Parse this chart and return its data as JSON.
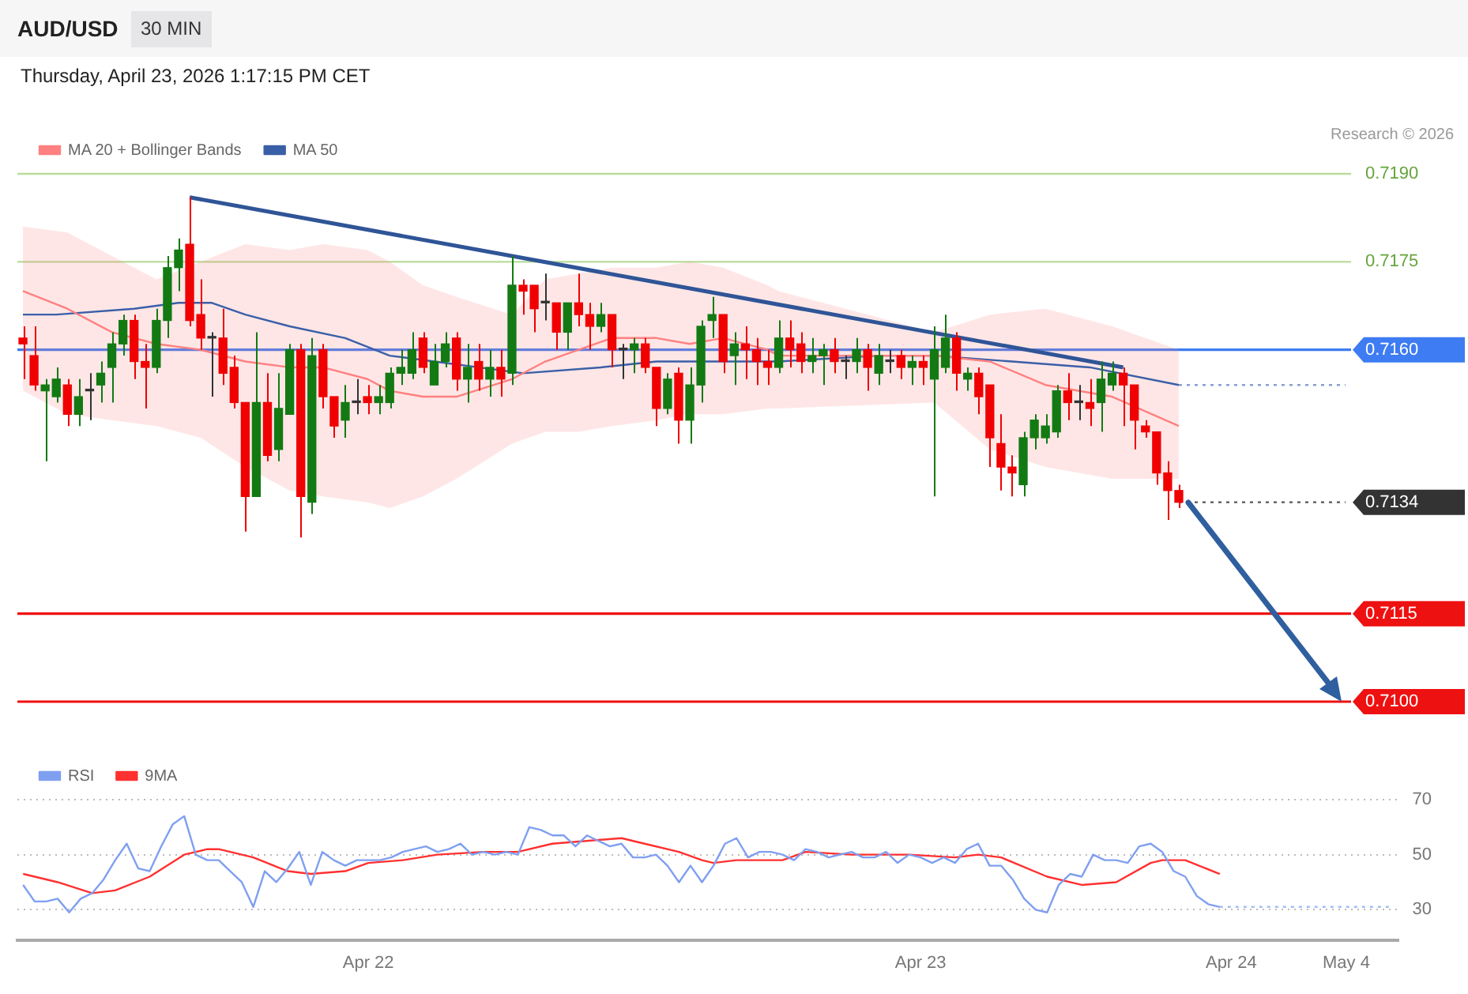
{
  "chart_data": [
    {
      "type": "candlestick",
      "title": "AUD/USD",
      "subtitle": "Thursday, April 23, 2026 1:17:15 PM CET",
      "annotations": [
        "30 MIN",
        "Research © 2026"
      ],
      "categories": [
        null,
        null,
        null,
        null,
        null,
        null,
        null,
        null,
        null,
        null,
        null,
        null,
        null,
        null,
        null,
        null,
        null,
        null,
        null,
        null,
        null,
        null,
        null,
        null,
        null,
        null,
        null,
        null,
        null,
        null,
        null,
        null,
        null,
        null,
        null,
        null,
        null,
        null,
        null,
        null,
        null,
        null,
        null,
        null,
        null,
        null,
        null,
        null,
        null,
        null,
        null,
        null,
        null,
        null,
        null,
        null,
        null,
        null,
        null,
        null,
        null,
        null,
        null,
        null,
        null,
        null,
        null,
        null,
        null,
        null,
        null,
        null,
        null,
        null,
        null,
        null,
        null,
        null,
        null,
        null,
        null,
        null,
        null,
        null,
        null,
        null,
        null,
        null,
        null,
        null,
        null,
        null,
        null,
        null,
        null,
        null,
        null,
        null,
        null,
        null,
        null,
        null,
        null,
        null,
        null,
        null,
        null,
        null,
        null,
        null,
        null,
        null,
        null,
        null,
        null,
        null,
        null,
        null,
        null,
        null
      ],
      "ohlc": [
        [
          0.7162,
          0.7164,
          0.7155,
          0.7161
        ],
        [
          0.7159,
          0.7164,
          0.7153,
          0.7154
        ],
        [
          0.7153,
          0.7155,
          0.7141,
          0.7154
        ],
        [
          0.7152,
          0.7157,
          0.7151,
          0.7155
        ],
        [
          0.7154,
          0.7155,
          0.7147,
          0.7149
        ],
        [
          0.7149,
          0.7155,
          0.7147,
          0.7152
        ],
        [
          0.7153,
          0.7156,
          0.7148,
          0.7153
        ],
        [
          0.7154,
          0.7158,
          0.7151,
          0.7156
        ],
        [
          0.7157,
          0.7163,
          0.7151,
          0.7161
        ],
        [
          0.7161,
          0.7166,
          0.7159,
          0.7165
        ],
        [
          0.7165,
          0.7166,
          0.7155,
          0.7158
        ],
        [
          0.7158,
          0.7161,
          0.715,
          0.7157
        ],
        [
          0.7157,
          0.7167,
          0.7156,
          0.7165
        ],
        [
          0.7165,
          0.7176,
          0.7162,
          0.7174
        ],
        [
          0.7174,
          0.7179,
          0.717,
          0.7177
        ],
        [
          0.7178,
          0.7186,
          0.7164,
          0.7165
        ],
        [
          0.7166,
          0.7172,
          0.716,
          0.7162
        ],
        [
          0.7162,
          0.7163,
          0.7152,
          0.7162
        ],
        [
          0.7162,
          0.7167,
          0.7154,
          0.7156
        ],
        [
          0.7157,
          0.7159,
          0.715,
          0.7151
        ],
        [
          0.7151,
          0.7151,
          0.7129,
          0.7135
        ],
        [
          0.7135,
          0.7163,
          0.7135,
          0.7151
        ],
        [
          0.7151,
          0.7156,
          0.7141,
          0.7142
        ],
        [
          0.7143,
          0.7156,
          0.7141,
          0.715
        ],
        [
          0.7149,
          0.7161,
          0.7149,
          0.716
        ],
        [
          0.716,
          0.7161,
          0.7128,
          0.7135
        ],
        [
          0.7134,
          0.7162,
          0.7132,
          0.7159
        ],
        [
          0.716,
          0.7161,
          0.715,
          0.7152
        ],
        [
          0.7152,
          0.7152,
          0.7145,
          0.7147
        ],
        [
          0.7148,
          0.7154,
          0.7145,
          0.7151
        ],
        [
          0.7151,
          0.7155,
          0.7149,
          0.7151
        ],
        [
          0.7152,
          0.7154,
          0.7149,
          0.7151
        ],
        [
          0.7151,
          0.7154,
          0.7149,
          0.7152
        ],
        [
          0.7151,
          0.7157,
          0.715,
          0.7156
        ],
        [
          0.7156,
          0.716,
          0.7154,
          0.7157
        ],
        [
          0.7156,
          0.7163,
          0.7155,
          0.716
        ],
        [
          0.7162,
          0.7163,
          0.7156,
          0.7157
        ],
        [
          0.7154,
          0.7161,
          0.7154,
          0.7158
        ],
        [
          0.7158,
          0.7163,
          0.7157,
          0.7161
        ],
        [
          0.7162,
          0.7163,
          0.7153,
          0.7155
        ],
        [
          0.7155,
          0.7161,
          0.7151,
          0.7157
        ],
        [
          0.7158,
          0.7161,
          0.7153,
          0.7155
        ],
        [
          0.7155,
          0.716,
          0.7152,
          0.7157
        ],
        [
          0.7157,
          0.716,
          0.7152,
          0.7155
        ],
        [
          0.7156,
          0.7176,
          0.7154,
          0.7171
        ],
        [
          0.7171,
          0.7172,
          0.7166,
          0.717
        ],
        [
          0.7171,
          0.7171,
          0.7163,
          0.7167
        ],
        [
          0.7168,
          0.7173,
          0.7165,
          0.7168
        ],
        [
          0.7168,
          0.7168,
          0.716,
          0.7163
        ],
        [
          0.7163,
          0.7168,
          0.716,
          0.7168
        ],
        [
          0.7168,
          0.7173,
          0.7164,
          0.7166
        ],
        [
          0.7166,
          0.7168,
          0.716,
          0.7164
        ],
        [
          0.7164,
          0.7168,
          0.7163,
          0.7166
        ],
        [
          0.7166,
          0.7166,
          0.7157,
          0.716
        ],
        [
          0.716,
          0.7161,
          0.7155,
          0.716
        ],
        [
          0.716,
          0.7162,
          0.7156,
          0.7161
        ],
        [
          0.7161,
          0.7162,
          0.7156,
          0.7157
        ],
        [
          0.7157,
          0.7157,
          0.7147,
          0.715
        ],
        [
          0.715,
          0.7156,
          0.7149,
          0.7155
        ],
        [
          0.7156,
          0.7157,
          0.7144,
          0.7148
        ],
        [
          0.7148,
          0.7157,
          0.7144,
          0.7154
        ],
        [
          0.7154,
          0.7165,
          0.7151,
          0.7164
        ],
        [
          0.7165,
          0.7169,
          0.7162,
          0.7166
        ],
        [
          0.7166,
          0.7166,
          0.7156,
          0.7158
        ],
        [
          0.7159,
          0.7163,
          0.7154,
          0.7161
        ],
        [
          0.7161,
          0.7164,
          0.7155,
          0.716
        ],
        [
          0.716,
          0.7162,
          0.7154,
          0.7158
        ],
        [
          0.7158,
          0.716,
          0.7154,
          0.7157
        ],
        [
          0.7157,
          0.7165,
          0.7156,
          0.7162
        ],
        [
          0.7162,
          0.7165,
          0.7157,
          0.716
        ],
        [
          0.7161,
          0.7163,
          0.7156,
          0.7158
        ],
        [
          0.7158,
          0.7162,
          0.7156,
          0.7159
        ],
        [
          0.7159,
          0.7161,
          0.7154,
          0.716
        ],
        [
          0.716,
          0.7162,
          0.7156,
          0.7158
        ],
        [
          0.7158,
          0.7159,
          0.7155,
          0.7158
        ],
        [
          0.7158,
          0.7162,
          0.7156,
          0.716
        ],
        [
          0.716,
          0.7161,
          0.7153,
          0.7157
        ],
        [
          0.7156,
          0.7161,
          0.7154,
          0.7159
        ],
        [
          0.7158,
          0.716,
          0.7156,
          0.7158
        ],
        [
          0.7159,
          0.716,
          0.7155,
          0.7157
        ],
        [
          0.7157,
          0.7159,
          0.7154,
          0.7158
        ],
        [
          0.7158,
          0.7159,
          0.7154,
          0.7157
        ],
        [
          0.7155,
          0.7164,
          0.7135,
          0.716
        ],
        [
          0.7157,
          0.7166,
          0.7156,
          0.7162
        ],
        [
          0.7162,
          0.7163,
          0.7153,
          0.7156
        ],
        [
          0.7155,
          0.7157,
          0.7153,
          0.7156
        ],
        [
          0.7156,
          0.7157,
          0.7149,
          0.7152
        ],
        [
          0.7154,
          0.7154,
          0.714,
          0.7145
        ],
        [
          0.7144,
          0.7149,
          0.7136,
          0.714
        ],
        [
          0.714,
          0.7142,
          0.7135,
          0.7139
        ],
        [
          0.7137,
          0.7146,
          0.7135,
          0.7145
        ],
        [
          0.7145,
          0.7149,
          0.7143,
          0.7148
        ],
        [
          0.7145,
          0.7149,
          0.7144,
          0.7147
        ],
        [
          0.7146,
          0.7154,
          0.7145,
          0.7153
        ],
        [
          0.7153,
          0.7156,
          0.7148,
          0.7151
        ],
        [
          0.7151,
          0.7154,
          0.7148,
          0.7151
        ],
        [
          0.7151,
          0.7155,
          0.7147,
          0.715
        ],
        [
          0.7151,
          0.7158,
          0.7146,
          0.7155
        ],
        [
          0.7154,
          0.7158,
          0.7153,
          0.7156
        ],
        [
          0.7156,
          0.7157,
          0.7147,
          0.7154
        ],
        [
          0.7154,
          0.7154,
          0.7143,
          0.7148
        ],
        [
          0.7147,
          0.7148,
          0.7145,
          0.7146
        ],
        [
          0.7146,
          0.7146,
          0.7137,
          0.7139
        ],
        [
          0.7139,
          0.7141,
          0.7131,
          0.7136
        ],
        [
          0.7136,
          0.7137,
          0.7133,
          0.7134
        ],
        null,
        null,
        null,
        null,
        null,
        null,
        null,
        null,
        null,
        null,
        null,
        null,
        null,
        null,
        null
      ],
      "colors": [
        "#f00000",
        "#f00000",
        "#137a13",
        "#137a13",
        "#f00000",
        "#137a13",
        "#333333",
        "#137a13",
        "#137a13",
        "#137a13",
        "#f00000",
        "#f00000",
        "#137a13",
        "#137a13",
        "#137a13",
        "#f00000",
        "#f00000",
        "#333333",
        "#f00000",
        "#f00000",
        "#f00000",
        "#137a13",
        "#f00000",
        "#137a13",
        "#137a13",
        "#f00000",
        "#137a13",
        "#f00000",
        "#f00000",
        "#137a13",
        "#333333",
        "#f00000",
        "#137a13",
        "#137a13",
        "#137a13",
        "#137a13",
        "#f00000",
        "#137a13",
        "#137a13",
        "#f00000",
        "#137a13",
        "#f00000",
        "#137a13",
        "#f00000",
        "#137a13",
        "#f00000",
        "#f00000",
        "#333333",
        "#f00000",
        "#137a13",
        "#f00000",
        "#f00000",
        "#137a13",
        "#f00000",
        "#333333",
        "#137a13",
        "#f00000",
        "#f00000",
        "#137a13",
        "#f00000",
        "#137a13",
        "#137a13",
        "#137a13",
        "#f00000",
        "#137a13",
        "#f00000",
        "#f00000",
        "#f00000",
        "#137a13",
        "#f00000",
        "#f00000",
        "#137a13",
        "#137a13",
        "#f00000",
        "#333333",
        "#137a13",
        "#f00000",
        "#137a13",
        "#333333",
        "#f00000",
        "#137a13",
        "#f00000",
        "#137a13",
        "#137a13",
        "#f00000",
        "#137a13",
        "#f00000",
        "#f00000",
        "#f00000",
        "#f00000",
        "#137a13",
        "#137a13",
        "#137a13",
        "#137a13",
        "#f00000",
        "#333333",
        "#f00000",
        "#137a13",
        "#137a13",
        "#f00000",
        "#f00000",
        "#f00000",
        "#f00000",
        "#f00000",
        "#f00000",
        null,
        null,
        null,
        null,
        null,
        null,
        null,
        null,
        null,
        null,
        null,
        null,
        null,
        null,
        null
      ],
      "series": [
        {
          "type": "line",
          "name": "MA 20 + Bollinger Bands",
          "color": "#ff8080",
          "values": [
            0.717,
            null,
            null,
            null,
            0.7167,
            null,
            null,
            null,
            0.7163,
            null,
            null,
            null,
            0.7161,
            null,
            null,
            null,
            0.716,
            null,
            null,
            null,
            0.7158,
            null,
            null,
            null,
            0.7157,
            null,
            null,
            0.7157,
            null,
            null,
            null,
            0.7155,
            null,
            0.7153,
            null,
            null,
            0.7152,
            null,
            null,
            0.7152,
            null,
            null,
            null,
            null,
            0.7155,
            null,
            null,
            0.7158,
            null,
            null,
            0.716,
            null,
            null,
            0.7162,
            null,
            null,
            null,
            0.7162,
            null,
            null,
            0.7161,
            null,
            null,
            0.7162,
            null,
            null,
            null,
            0.716,
            0.7159,
            null,
            null,
            null,
            null,
            null,
            null,
            null,
            null,
            null,
            null,
            null,
            null,
            null,
            0.7159,
            null,
            null,
            null,
            null,
            0.7158,
            null,
            null,
            null,
            null,
            0.7154,
            null,
            null,
            null,
            null,
            null,
            0.7152,
            null,
            null,
            null,
            null,
            null,
            0.7147,
            null,
            null,
            null,
            null,
            null,
            null,
            null,
            null,
            null,
            null,
            null,
            null,
            null,
            null,
            null
          ],
          "lower": [
            0.7153,
            null,
            null,
            null,
            0.7149,
            null,
            null,
            null,
            0.7148,
            null,
            null,
            null,
            0.7147,
            null,
            null,
            null,
            0.7145,
            null,
            null,
            null,
            0.714,
            null,
            null,
            null,
            0.7136,
            null,
            null,
            0.7135,
            null,
            null,
            null,
            0.7134,
            null,
            0.7133,
            null,
            null,
            0.7135,
            null,
            null,
            0.7138,
            null,
            null,
            null,
            null,
            0.7144,
            null,
            null,
            0.7146,
            null,
            null,
            0.7146,
            null,
            null,
            0.7147,
            null,
            null,
            null,
            0.7148,
            null,
            null,
            0.7149,
            null,
            null,
            0.7149,
            null,
            null,
            null,
            0.715,
            0.715,
            null,
            null,
            null,
            null,
            null,
            null,
            null,
            null,
            null,
            null,
            null,
            null,
            null,
            0.7151,
            null,
            null,
            null,
            null,
            0.7143,
            null,
            null,
            null,
            null,
            0.714,
            null,
            null,
            null,
            null,
            null,
            0.7138,
            null,
            null,
            null,
            null,
            null,
            0.7138,
            null,
            null,
            null,
            null,
            null,
            null,
            null,
            null,
            null,
            null,
            null,
            null,
            null,
            null,
            null
          ],
          "upper": [
            0.7181,
            null,
            null,
            null,
            0.718,
            null,
            null,
            null,
            0.7176,
            null,
            null,
            null,
            0.7172,
            null,
            null,
            null,
            0.7175,
            null,
            null,
            null,
            0.7178,
            null,
            null,
            null,
            0.7177,
            null,
            null,
            0.7178,
            null,
            null,
            null,
            0.7177,
            null,
            0.7175,
            null,
            null,
            0.7171,
            null,
            null,
            0.7169,
            null,
            null,
            null,
            null,
            0.7166,
            null,
            null,
            0.7172,
            null,
            null,
            0.7173,
            null,
            null,
            0.7174,
            null,
            null,
            null,
            0.7174,
            null,
            null,
            0.7175,
            null,
            null,
            0.7174,
            null,
            null,
            null,
            0.7171,
            0.717,
            null,
            null,
            null,
            null,
            null,
            null,
            null,
            null,
            null,
            null,
            null,
            null,
            null,
            0.7163,
            null,
            null,
            null,
            null,
            0.7166,
            null,
            null,
            null,
            null,
            0.7167,
            null,
            null,
            null,
            null,
            null,
            0.7164,
            null,
            null,
            null,
            null,
            null,
            0.716,
            null,
            null,
            null,
            null,
            null,
            null,
            null,
            null,
            null,
            null,
            null,
            null,
            null,
            null,
            null
          ]
        },
        {
          "type": "line",
          "name": "MA 50",
          "color": "#3a5fa8",
          "values": [
            0.7166,
            null,
            null,
            0.7166,
            null,
            null,
            null,
            null,
            null,
            null,
            0.7167,
            null,
            null,
            null,
            0.7168,
            null,
            null,
            0.7168,
            null,
            null,
            0.7166,
            null,
            null,
            null,
            0.7164,
            null,
            null,
            null,
            null,
            0.7162,
            null,
            null,
            null,
            0.7159,
            null,
            null,
            null,
            0.7158,
            null,
            null,
            null,
            0.7157,
            null,
            null,
            null,
            0.7156,
            null,
            null,
            null,
            null,
            null,
            null,
            0.7157,
            null,
            null,
            null,
            null,
            0.7158,
            null,
            null,
            null,
            0.7158,
            null,
            null,
            null,
            null,
            null,
            null,
            0.7158,
            null,
            null,
            null,
            null,
            null,
            null,
            null,
            null,
            0.7159,
            null,
            null,
            null,
            null,
            0.7159,
            null,
            null,
            null,
            null,
            null,
            null,
            0.7158,
            null,
            null,
            null,
            null,
            null,
            null,
            0.7157,
            null,
            null,
            null,
            null,
            null,
            null,
            null,
            0.7154,
            null,
            null,
            null,
            null,
            null,
            null,
            null,
            null,
            null,
            null,
            null,
            null,
            null,
            null,
            null
          ]
        },
        {
          "type": "line",
          "color": "#8a9fd0",
          "line_style": "dotted",
          "values": [
            null,
            null,
            null,
            null,
            null,
            null,
            null,
            null,
            null,
            null,
            null,
            null,
            null,
            null,
            null,
            null,
            null,
            null,
            null,
            null,
            null,
            null,
            null,
            null,
            null,
            null,
            null,
            null,
            null,
            null,
            null,
            null,
            null,
            null,
            null,
            null,
            null,
            null,
            null,
            null,
            null,
            null,
            null,
            null,
            null,
            null,
            null,
            null,
            null,
            null,
            null,
            null,
            null,
            null,
            null,
            null,
            null,
            null,
            null,
            null,
            null,
            null,
            null,
            null,
            null,
            null,
            null,
            null,
            null,
            null,
            null,
            null,
            null,
            null,
            null,
            null,
            null,
            null,
            null,
            null,
            null,
            null,
            null,
            null,
            null,
            null,
            null,
            null,
            null,
            null,
            null,
            null,
            null,
            null,
            null,
            null,
            null,
            null,
            null,
            null,
            null,
            null,
            null,
            null,
            0.7154,
            0.7154,
            0.7154,
            0.7154,
            0.7154,
            0.7154,
            0.7154,
            0.7154,
            0.7154,
            0.7154,
            0.7154,
            0.7154,
            0.7154,
            0.7154,
            0.7154,
            0.7154
          ]
        },
        {
          "type": "line",
          "color": "#555555",
          "line_style": "dotted",
          "values": [
            null,
            null,
            null,
            null,
            null,
            null,
            null,
            null,
            null,
            null,
            null,
            null,
            null,
            null,
            null,
            null,
            null,
            null,
            null,
            null,
            null,
            null,
            null,
            null,
            null,
            null,
            null,
            null,
            null,
            null,
            null,
            null,
            null,
            null,
            null,
            null,
            null,
            null,
            null,
            null,
            null,
            null,
            null,
            null,
            null,
            null,
            null,
            null,
            null,
            null,
            null,
            null,
            null,
            null,
            null,
            null,
            null,
            null,
            null,
            null,
            null,
            null,
            null,
            null,
            null,
            null,
            null,
            null,
            null,
            null,
            null,
            null,
            null,
            null,
            null,
            null,
            null,
            null,
            null,
            null,
            null,
            null,
            null,
            null,
            null,
            null,
            null,
            null,
            null,
            null,
            null,
            null,
            null,
            null,
            null,
            null,
            null,
            null,
            null,
            null,
            null,
            null,
            null,
            null,
            0.7134,
            0.7134,
            0.7134,
            0.7134,
            0.7134,
            0.7134,
            0.7134,
            0.7134,
            0.7134,
            0.7134,
            0.7134,
            0.7134,
            0.7134,
            0.7134,
            0.7134,
            0.7134
          ]
        },
        {
          "type": "line",
          "color": "#2f5597",
          "values": [
            null,
            null,
            null,
            null,
            null,
            null,
            null,
            null,
            null,
            null,
            null,
            null,
            null,
            null,
            null,
            0.7186,
            null,
            null,
            null,
            null,
            null,
            null,
            null,
            null,
            null,
            null,
            null,
            null,
            null,
            null,
            null,
            null,
            null,
            null,
            null,
            null,
            null,
            null,
            null,
            null,
            null,
            null,
            null,
            null,
            null,
            null,
            null,
            null,
            null,
            null,
            null,
            null,
            null,
            null,
            null,
            null,
            null,
            null,
            null,
            null,
            null,
            null,
            null,
            null,
            null,
            null,
            null,
            null,
            null,
            null,
            null,
            null,
            null,
            null,
            null,
            null,
            null,
            null,
            null,
            null,
            null,
            null,
            null,
            null,
            null,
            null,
            null,
            null,
            null,
            null,
            null,
            null,
            null,
            null,
            null,
            null,
            null,
            null,
            null,
            0.7157,
            null,
            null,
            null,
            null,
            null,
            null,
            null,
            null,
            null,
            null,
            null,
            null,
            null,
            null,
            null,
            null,
            null,
            null,
            null,
            null
          ]
        }
      ],
      "ylim": [
        0.71,
        0.719
      ],
      "yticks": [
        {
          "value": 0.719,
          "label": "0.7190"
        },
        {
          "value": 0.7175,
          "label": "0.7175"
        },
        {
          "value": 0.716,
          "label": "0.7160"
        },
        {
          "value": 0.7134,
          "label": "0.7134"
        },
        {
          "value": 0.7115,
          "label": "0.7115"
        },
        {
          "value": 0.71,
          "label": "0.7100"
        }
      ],
      "ref_lines": [
        {
          "axis": "y",
          "value": 0.719,
          "color": "#b9dc9c"
        },
        {
          "axis": "y",
          "value": 0.7175,
          "color": "#b9dc9c"
        },
        {
          "axis": "y",
          "value": 0.716,
          "color": "#3d7cf2"
        },
        {
          "axis": "y",
          "value": 0.7115,
          "color": "#ee1111"
        },
        {
          "axis": "y",
          "value": 0.71,
          "color": "#ee1111"
        }
      ],
      "legend": "top left",
      "tick_labels": "y",
      "marker": "none"
    },
    {
      "type": "line",
      "categories": [
        null,
        null,
        null,
        null,
        null,
        null,
        null,
        null,
        null,
        null,
        null,
        null,
        null,
        null,
        null,
        null,
        null,
        null,
        null,
        null,
        null,
        null,
        null,
        null,
        null,
        null,
        null,
        null,
        null,
        null,
        "Apr 22",
        null,
        null,
        null,
        null,
        null,
        null,
        null,
        null,
        null,
        null,
        null,
        null,
        null,
        null,
        null,
        null,
        null,
        null,
        null,
        null,
        null,
        null,
        null,
        null,
        null,
        null,
        null,
        null,
        null,
        null,
        null,
        null,
        null,
        null,
        null,
        null,
        null,
        null,
        null,
        null,
        null,
        null,
        null,
        null,
        null,
        null,
        null,
        "Apr 23",
        null,
        null,
        null,
        null,
        null,
        null,
        null,
        null,
        null,
        null,
        null,
        null,
        null,
        null,
        null,
        null,
        null,
        null,
        null,
        null,
        null,
        null,
        null,
        null,
        null,
        null,
        "Apr 24",
        null,
        null,
        null,
        null,
        null,
        null,
        null,
        null,
        null,
        "May 4",
        null,
        null,
        null,
        null
      ],
      "series": [
        {
          "name": "RSI",
          "color": "#7f9ff0",
          "values": [
            39,
            33,
            33,
            34,
            29,
            34,
            36,
            41,
            48,
            54,
            45,
            44,
            53,
            61,
            64,
            50,
            48,
            48,
            44,
            40,
            31,
            44,
            40,
            45,
            51,
            39,
            51,
            48,
            46,
            48,
            48,
            48,
            49,
            51,
            52,
            53,
            51,
            52,
            54,
            50,
            51,
            50,
            51,
            50,
            60,
            59,
            57,
            57,
            53,
            57,
            55,
            53,
            54,
            49,
            49,
            50,
            46,
            40,
            46,
            40,
            46,
            54,
            56,
            49,
            51,
            51,
            50,
            48,
            52,
            51,
            49,
            50,
            51,
            49,
            49,
            51,
            47,
            50,
            49,
            47,
            49,
            47,
            52,
            54,
            46,
            46,
            41,
            34,
            30,
            29,
            39,
            43,
            42,
            50,
            48,
            48,
            47,
            53,
            54,
            51,
            44,
            42,
            35,
            32,
            31,
            null,
            null,
            null,
            null,
            null,
            null,
            null,
            null,
            null,
            null,
            null,
            null,
            null,
            null,
            null
          ]
        },
        {
          "name": "9MA",
          "color": "#ff3030",
          "values": [
            43,
            null,
            null,
            40,
            null,
            null,
            36,
            null,
            37,
            null,
            null,
            42,
            null,
            null,
            50,
            null,
            52,
            52,
            null,
            null,
            49,
            null,
            null,
            44,
            null,
            43,
            null,
            null,
            44,
            null,
            47,
            null,
            null,
            48,
            null,
            null,
            50,
            null,
            null,
            null,
            51,
            null,
            null,
            51,
            null,
            null,
            54,
            null,
            null,
            null,
            null,
            null,
            56,
            null,
            54,
            null,
            null,
            51,
            null,
            48,
            47,
            null,
            48,
            null,
            null,
            null,
            48,
            null,
            51,
            null,
            null,
            null,
            50,
            null,
            null,
            null,
            null,
            50,
            null,
            null,
            null,
            49,
            null,
            50,
            null,
            49,
            null,
            null,
            null,
            42,
            null,
            null,
            39,
            null,
            null,
            40,
            null,
            null,
            47,
            48,
            null,
            48,
            null,
            null,
            43,
            null,
            null,
            null,
            null,
            null,
            null,
            null,
            null,
            null,
            null,
            null,
            null,
            null,
            null,
            null
          ]
        },
        {
          "color": "#a9bdf2",
          "line_style": "dotted",
          "values": [
            null,
            null,
            null,
            null,
            null,
            null,
            null,
            null,
            null,
            null,
            null,
            null,
            null,
            null,
            null,
            null,
            null,
            null,
            null,
            null,
            null,
            null,
            null,
            null,
            null,
            null,
            null,
            null,
            null,
            null,
            null,
            null,
            null,
            null,
            null,
            null,
            null,
            null,
            null,
            null,
            null,
            null,
            null,
            null,
            null,
            null,
            null,
            null,
            null,
            null,
            null,
            null,
            null,
            null,
            null,
            null,
            null,
            null,
            null,
            null,
            null,
            null,
            null,
            null,
            null,
            null,
            null,
            null,
            null,
            null,
            null,
            null,
            null,
            null,
            null,
            null,
            null,
            null,
            null,
            null,
            null,
            null,
            null,
            null,
            null,
            null,
            null,
            null,
            null,
            null,
            null,
            null,
            null,
            null,
            null,
            null,
            null,
            null,
            null,
            null,
            null,
            null,
            null,
            null,
            31,
            31,
            31,
            31,
            31,
            31,
            31,
            31,
            31,
            31,
            31,
            31,
            31,
            31,
            31,
            31
          ]
        }
      ],
      "ylim": [
        19,
        70
      ],
      "yticks": [
        30,
        50,
        70
      ],
      "grid": "y",
      "legend": "top left",
      "marker": "none"
    }
  ]
}
